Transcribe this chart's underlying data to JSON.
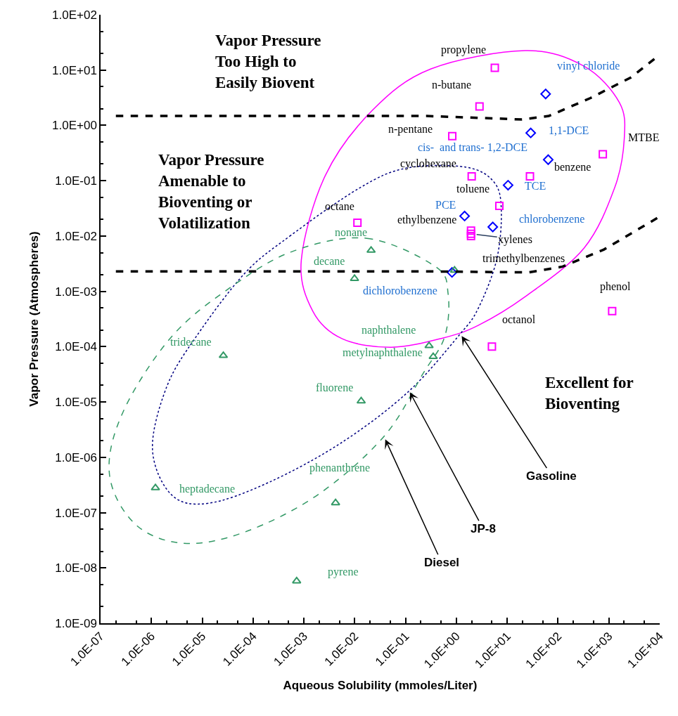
{
  "chart_data": {
    "type": "scatter",
    "xlabel": "Aqueous Solubility (mmoles/Liter)",
    "ylabel": "Vapor Pressure (Atmospheres)",
    "log": "xy",
    "grid": false,
    "xlim": [
      1e-07,
      10000.0
    ],
    "ylim": [
      1e-09,
      100.0
    ],
    "xticks": [
      {
        "value": 1e-07,
        "label": "1.0E-07"
      },
      {
        "value": 1e-06,
        "label": "1.0E-06"
      },
      {
        "value": 1e-05,
        "label": "1.0E-05"
      },
      {
        "value": 0.0001,
        "label": "1.0E-04"
      },
      {
        "value": 0.001,
        "label": "1.0E-03"
      },
      {
        "value": 0.01,
        "label": "1.0E-02"
      },
      {
        "value": 0.1,
        "label": "1.0E-01"
      },
      {
        "value": 1,
        "label": "1.0E+00"
      },
      {
        "value": 10,
        "label": "1.0E+01"
      },
      {
        "value": 100,
        "label": "1.0E+02"
      },
      {
        "value": 1000,
        "label": "1.0E+03"
      },
      {
        "value": 10000,
        "label": "1.0E+04"
      }
    ],
    "yticks": [
      {
        "value": 1e-09,
        "label": "1.0E-09"
      },
      {
        "value": 1e-08,
        "label": "1.0E-08"
      },
      {
        "value": 1e-07,
        "label": "1.0E-07"
      },
      {
        "value": 1e-06,
        "label": "1.0E-06"
      },
      {
        "value": 1e-05,
        "label": "1.0E-05"
      },
      {
        "value": 0.0001,
        "label": "1.0E-04"
      },
      {
        "value": 0.001,
        "label": "1.0E-03"
      },
      {
        "value": 0.01,
        "label": "1.0E-02"
      },
      {
        "value": 0.1,
        "label": "1.0E-01"
      },
      {
        "value": 1,
        "label": "1.0E+00"
      },
      {
        "value": 10,
        "label": "1.0E+01"
      },
      {
        "value": 100,
        "label": "1.0E+02"
      }
    ],
    "series": [
      {
        "marker": "square",
        "color": "#ff00ff",
        "x": [
          5.7,
          2.85,
          0.83,
          2.0,
          7.0,
          0.0113,
          1.94,
          1.94,
          1.94,
          28,
          760,
          1160,
          5.0
        ],
        "values": [
          11,
          2.2,
          0.64,
          0.12,
          0.035,
          0.0174,
          0.0125,
          0.011,
          0.01,
          0.12,
          0.3,
          0.00044,
          0.0001
        ]
      },
      {
        "marker": "diamond",
        "color": "#0000ff",
        "x": [
          57,
          29,
          64,
          10.4,
          1.45,
          5.2,
          0.82
        ],
        "values": [
          3.7,
          0.73,
          0.24,
          0.083,
          0.023,
          0.0146,
          0.0022
        ]
      },
      {
        "marker": "triangle",
        "color": "#339966",
        "x": [
          0.021,
          0.0099,
          0.92,
          0.29,
          0.35,
          2.6e-05,
          0.0134,
          1.2e-06,
          0.0042,
          0.00072
        ],
        "values": [
          0.0055,
          0.0017,
          0.0024,
          0.000104,
          6.6e-05,
          6.9e-05,
          1.04e-05,
          2.8e-07,
          1.5e-07,
          5.8e-09
        ]
      },
      {
        "type": "line",
        "line_style": "dashed",
        "color": "#000000",
        "x": [
          2e-07,
          0.255,
          19.5,
          66,
          427,
          2750,
          10000.0
        ],
        "values": [
          1.48,
          1.48,
          1.28,
          1.48,
          3.1,
          7.4,
          18.9
        ]
      },
      {
        "type": "line",
        "line_style": "dashed",
        "color": "#000000",
        "x": [
          2e-07,
          0.255,
          26,
          123,
          800,
          10000.0
        ],
        "values": [
          0.0023,
          0.0023,
          0.0022,
          0.0028,
          0.0057,
          0.0225
        ]
      }
    ],
    "annotations": [
      "Vapor Pressure\nToo High to\nEasily Biovent",
      "Vapor Pressure\nAmenable to\nBioventing or\nVolatilization",
      "Excellent for\nBioventing",
      "Gasoline",
      "JP-8",
      "Diesel",
      {
        "text": "propylene",
        "x": 5.7,
        "y": 11
      },
      {
        "text": "n-butane",
        "x": 2.85,
        "y": 2.2
      },
      {
        "text": "n-pentane",
        "x": 0.83,
        "y": 0.64
      },
      {
        "text": "cyclohexane",
        "x": 2.0,
        "y": 0.12
      },
      {
        "text": "toluene",
        "x": 7.0,
        "y": 0.035
      },
      {
        "text": "octane",
        "x": 0.0113,
        "y": 0.0174
      },
      {
        "text": "ethylbenzene",
        "x": 1.94,
        "y": 0.0125
      },
      {
        "text": "xylenes",
        "x": 1.94,
        "y": 0.011
      },
      {
        "text": "trimethylbenzenes",
        "x": 1.94,
        "y": 0.01
      },
      {
        "text": "benzene",
        "x": 28,
        "y": 0.12
      },
      {
        "text": "MTBE",
        "x": 760,
        "y": 0.3
      },
      {
        "text": "phenol",
        "x": 1160,
        "y": 0.00044
      },
      {
        "text": "octanol",
        "x": 5.0,
        "y": 0.0001
      },
      {
        "text": "vinyl chloride",
        "x": 57,
        "y": 3.7
      },
      {
        "text": "1,1-DCE",
        "x": 29,
        "y": 0.73
      },
      {
        "text": "cis-  and trans- 1,2-DCE",
        "x": 64,
        "y": 0.24
      },
      {
        "text": "TCE",
        "x": 10.4,
        "y": 0.083
      },
      {
        "text": "PCE",
        "x": 1.45,
        "y": 0.023
      },
      {
        "text": "chlorobenzene",
        "x": 5.2,
        "y": 0.0146
      },
      {
        "text": "dichlorobenzene",
        "x": 0.82,
        "y": 0.0022
      },
      {
        "text": "nonane",
        "x": 0.021,
        "y": 0.0055
      },
      {
        "text": "decane",
        "x": 0.0099,
        "y": 0.0017
      },
      {
        "text": "naphthalene",
        "x": 0.29,
        "y": 0.000104
      },
      {
        "text": "metylnaphthalene",
        "x": 0.35,
        "y": 6.6e-05
      },
      {
        "text": "tridecane",
        "x": 2.6e-05,
        "y": 6.9e-05
      },
      {
        "text": "fluorene",
        "x": 0.0134,
        "y": 1.04e-05
      },
      {
        "text": "heptadecane",
        "x": 1.2e-06,
        "y": 2.8e-07
      },
      {
        "text": "phenanthrene",
        "x": 0.0042,
        "y": 1.5e-07
      },
      {
        "text": "pyrene",
        "x": 0.00072,
        "y": 5.8e-09
      }
    ]
  }
}
